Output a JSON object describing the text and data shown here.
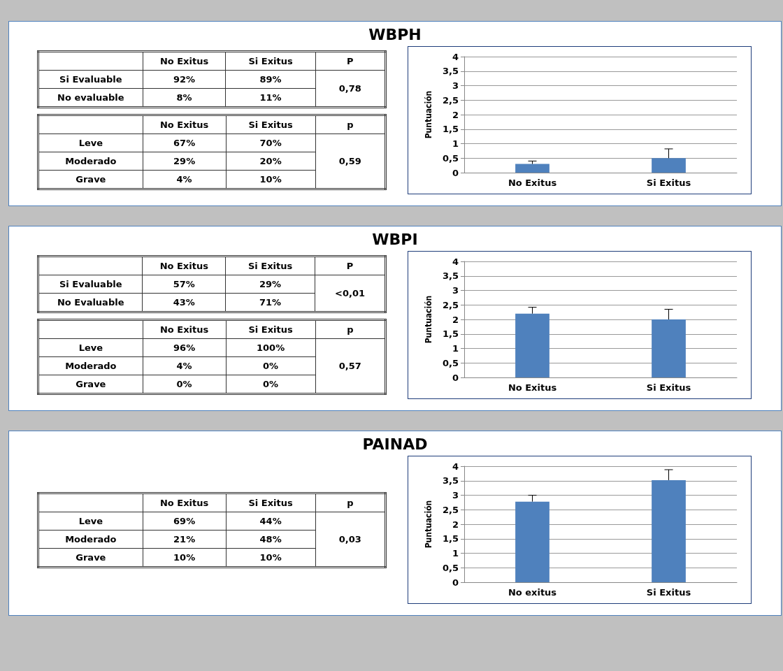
{
  "chart_data": [
    {
      "type": "other",
      "title": "WBPH",
      "categories": [
        null,
        "No Exitus",
        "Si Exitus",
        "P"
      ],
      "y_categories": [
        "Si Evaluable",
        "No evaluable"
      ],
      "cell_labels": [
        [
          "92%",
          "89%",
          "0,78"
        ],
        [
          "8%",
          "11%",
          null
        ]
      ]
    },
    {
      "type": "other",
      "categories": [
        null,
        "No Exitus",
        "Si Exitus",
        "p"
      ],
      "y_categories": [
        "Leve",
        "Moderado",
        "Grave"
      ],
      "cell_labels": [
        [
          "67%",
          "70%",
          "0,59"
        ],
        [
          "29%",
          "20%",
          null
        ],
        [
          "4%",
          "10%",
          null
        ]
      ]
    },
    {
      "type": "bar",
      "ylabel": "Puntuación",
      "categories": [
        "No Exitus",
        "Si Exitus"
      ],
      "grid": "y",
      "series": [
        {
          "color": "#4f81bd",
          "values": [
            0.3,
            0.5
          ],
          "errors": [
            [
              0.3,
              0.4
            ],
            [
              0.5,
              0.82
            ]
          ]
        }
      ],
      "ylim": [
        0,
        4
      ],
      "yticks": [
        0,
        {
          "value": 0.5,
          "label": "0,5"
        },
        1,
        {
          "value": 1.5,
          "label": "1,5"
        },
        2,
        {
          "value": 2.5,
          "label": "2,5"
        },
        3,
        {
          "value": 3.5,
          "label": "3,5"
        },
        4
      ]
    },
    {
      "type": "other",
      "title": "WBPI",
      "categories": [
        null,
        "No Exitus",
        "Si Exitus",
        "P"
      ],
      "y_categories": [
        "Si Evaluable",
        "No Evaluable"
      ],
      "cell_labels": [
        [
          "57%",
          "29%",
          "<0,01"
        ],
        [
          "43%",
          "71%",
          null
        ]
      ]
    },
    {
      "type": "other",
      "categories": [
        null,
        "No Exitus",
        "Si Exitus",
        "p"
      ],
      "y_categories": [
        "Leve",
        "Moderado",
        "Grave"
      ],
      "cell_labels": [
        [
          "96%",
          "100%",
          "0,57"
        ],
        [
          "4%",
          "0%",
          null
        ],
        [
          "0%",
          "0%",
          null
        ]
      ]
    },
    {
      "type": "bar",
      "ylabel": "Puntuación",
      "categories": [
        "No Exitus",
        "Si Exitus"
      ],
      "grid": "y",
      "series": [
        {
          "color": "#4f81bd",
          "values": [
            2.2,
            2.0
          ],
          "errors": [
            [
              2.2,
              2.42
            ],
            [
              2.0,
              2.35
            ]
          ]
        }
      ],
      "ylim": [
        0,
        4
      ],
      "yticks": [
        0,
        {
          "value": 0.5,
          "label": "0,5"
        },
        1,
        {
          "value": 1.5,
          "label": "1,5"
        },
        2,
        {
          "value": 2.5,
          "label": "2,5"
        },
        3,
        {
          "value": 3.5,
          "label": "3,5"
        },
        4
      ]
    },
    {
      "type": "other",
      "title": "PAINAD",
      "categories": [
        null,
        "No Exitus",
        "Si Exitus",
        "p"
      ],
      "y_categories": [
        "Leve",
        "Moderado",
        "Grave"
      ],
      "cell_labels": [
        [
          "69%",
          "44%",
          "0,03"
        ],
        [
          "21%",
          "48%",
          null
        ],
        [
          "10%",
          "10%",
          null
        ]
      ]
    },
    {
      "type": "bar",
      "ylabel": "Puntuación",
      "categories": [
        "No exitus",
        "Si Exitus"
      ],
      "grid": "y",
      "series": [
        {
          "color": "#4f81bd",
          "values": [
            2.78,
            3.52
          ],
          "errors": [
            [
              2.78,
              3.0
            ],
            [
              3.52,
              3.88
            ]
          ]
        }
      ],
      "ylim": [
        0,
        4
      ],
      "yticks": [
        0,
        {
          "value": 0.5,
          "label": "0,5"
        },
        1,
        {
          "value": 1.5,
          "label": "1,5"
        },
        2,
        {
          "value": 2.5,
          "label": "2,5"
        },
        3,
        {
          "value": 3.5,
          "label": "3,5"
        },
        4
      ]
    }
  ]
}
